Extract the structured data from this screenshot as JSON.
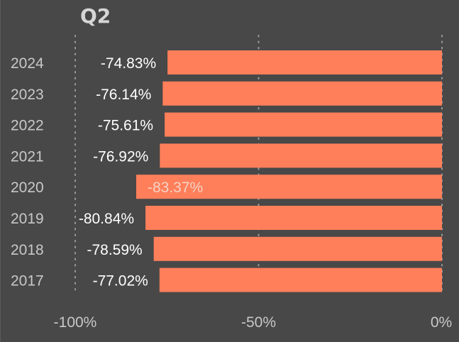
{
  "chart_data": {
    "type": "bar",
    "orientation": "horizontal",
    "title": "Q2",
    "categories": [
      "2024",
      "2023",
      "2022",
      "2021",
      "2020",
      "2019",
      "2018",
      "2017"
    ],
    "values": [
      -74.83,
      -76.14,
      -75.61,
      -76.92,
      -83.37,
      -80.84,
      -78.59,
      -77.02
    ],
    "data_labels": [
      "-74.83%",
      "-76.14%",
      "-75.61%",
      "-76.92%",
      "-83.37%",
      "-80.84%",
      "-78.59%",
      "-77.02%"
    ],
    "xlim": [
      -100,
      0
    ],
    "x_ticks": [
      {
        "value": -100,
        "label": "-100%"
      },
      {
        "value": -50,
        "label": "-50%"
      },
      {
        "value": 0,
        "label": "0%"
      }
    ],
    "grid": "vertical dotted",
    "bar_color": "#ff7f5a",
    "highlight_index": 4,
    "highlight_label_color": "#f5d2c4",
    "label_color": "#ffffff",
    "tick_color": "#c8c8c8",
    "grid_color": "#9a9a9a"
  }
}
